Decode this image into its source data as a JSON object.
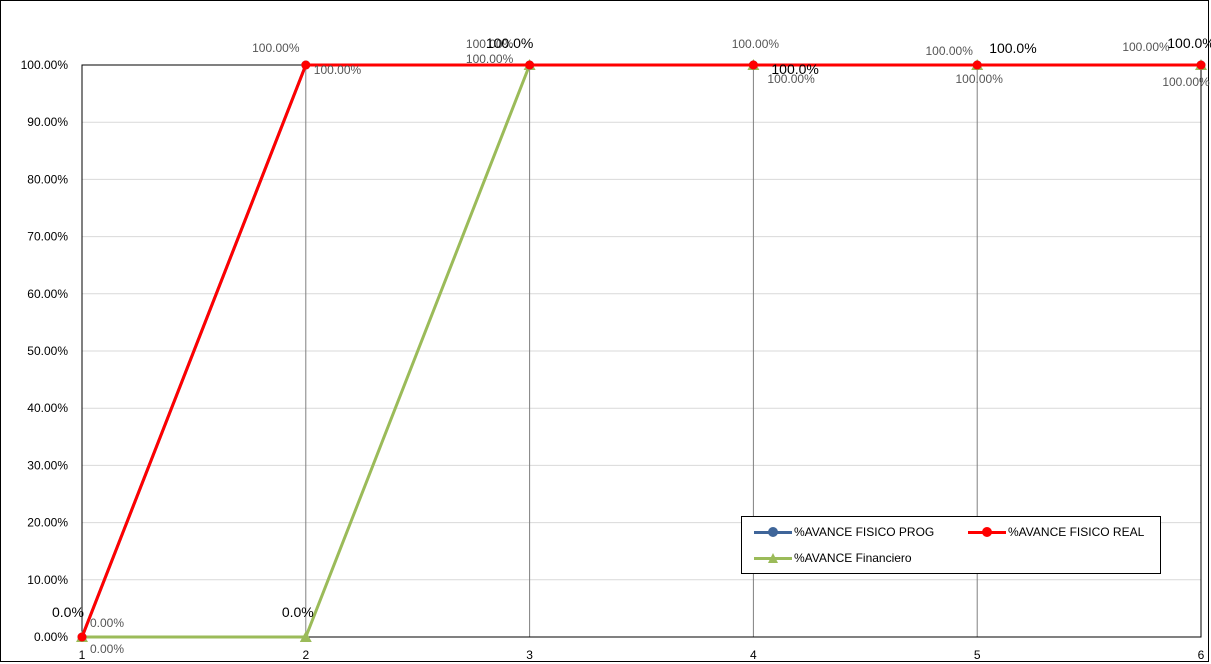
{
  "chart_data": {
    "type": "line",
    "title": "",
    "xlabel": "",
    "ylabel": "",
    "categories": [
      "1",
      "2",
      "3",
      "4",
      "5",
      "6"
    ],
    "y_ticks": [
      "0.00%",
      "10.00%",
      "20.00%",
      "30.00%",
      "40.00%",
      "50.00%",
      "60.00%",
      "70.00%",
      "80.00%",
      "90.00%",
      "100.00%"
    ],
    "ylim": [
      0,
      1
    ],
    "grid": "vertical lines at each category, horizontal gridlines",
    "legend_position": "bottom-right",
    "series": [
      {
        "name": "%AVANCE FISICO PROG",
        "color": "#3f6599",
        "marker": "circle",
        "values": [
          0,
          1,
          1,
          1,
          1,
          1
        ],
        "labels": [
          "0.00%",
          "100.00%",
          "100.00%",
          "100.00%",
          "100.00%",
          "100.00%"
        ]
      },
      {
        "name": "%AVANCE FISICO REAL",
        "color": "#ff0000",
        "marker": "circle",
        "values": [
          0,
          1,
          1,
          1,
          1,
          1
        ],
        "labels": [
          "0.00%",
          "100.00%",
          "100.00%",
          "100.00%",
          "100.00%",
          "100.00%"
        ]
      },
      {
        "name": "%AVANCE Financiero",
        "color": "#9bbb59",
        "marker": "triangle",
        "values": [
          0,
          0,
          1,
          1,
          1,
          1
        ],
        "labels": [
          "0.0%",
          "0.0%",
          "100.0%",
          "100.0%",
          "100.0%",
          "100.0%"
        ]
      }
    ]
  }
}
